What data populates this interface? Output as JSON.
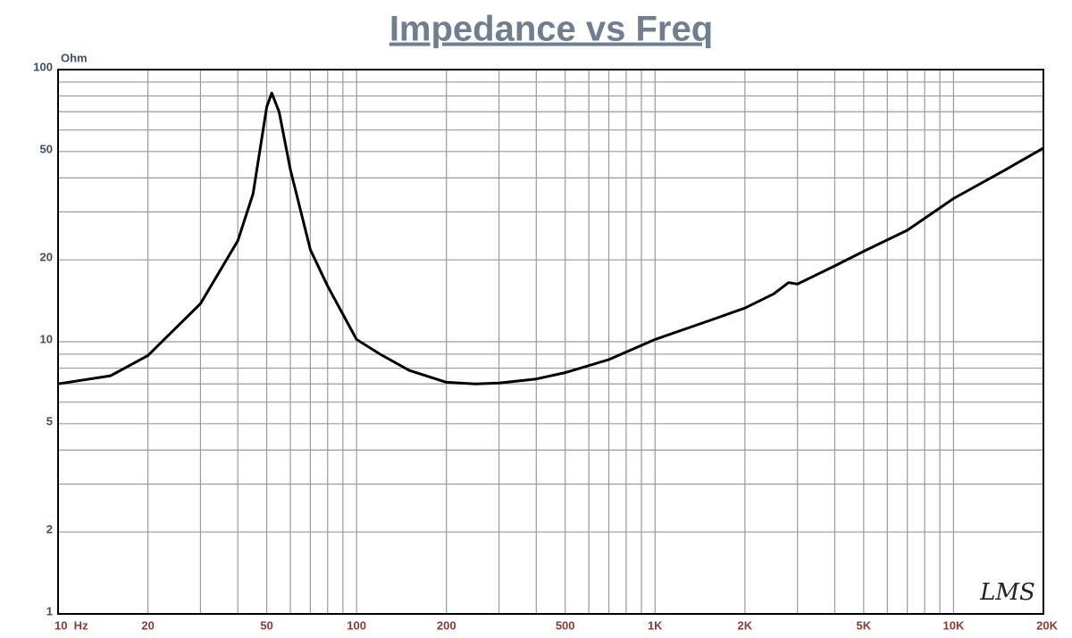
{
  "chart_data": {
    "type": "line",
    "title": "Impedance vs Freq",
    "y_label": "Ohm",
    "annotation": "LMS",
    "x_log": true,
    "y_log": true,
    "grid": true,
    "xlim": [
      10,
      20000
    ],
    "ylim": [
      1,
      100
    ],
    "xticks": [
      {
        "value": 10,
        "label": "10  Hz"
      },
      20,
      50,
      100,
      200,
      500,
      {
        "value": 1000,
        "label": "1K"
      },
      {
        "value": 2000,
        "label": "2K"
      },
      {
        "value": 5000,
        "label": "5K"
      },
      {
        "value": 10000,
        "label": "10K"
      },
      {
        "value": 20000,
        "label": "20K"
      }
    ],
    "x_minor_grid": [
      30,
      40,
      60,
      70,
      80,
      90,
      300,
      400,
      600,
      700,
      800,
      900,
      3000,
      4000,
      6000,
      7000,
      8000,
      9000
    ],
    "yticks": [
      1,
      2,
      5,
      10,
      20,
      50,
      100
    ],
    "y_minor_grid": [
      3,
      4,
      6,
      7,
      8,
      9,
      30,
      40,
      60,
      70,
      80,
      90
    ],
    "x": [
      10,
      15,
      20,
      30,
      40,
      45,
      50,
      52,
      55,
      60,
      70,
      80,
      100,
      120,
      150,
      200,
      250,
      300,
      400,
      500,
      700,
      1000,
      1500,
      2000,
      2500,
      2800,
      3000,
      4000,
      5000,
      7000,
      10000,
      15000,
      20000
    ],
    "series": [
      {
        "color": "#000000",
        "values": [
          7.0,
          7.5,
          8.9,
          13.8,
          23.5,
          35,
          73,
          82,
          70,
          43,
          21.8,
          16,
          10.2,
          9,
          7.85,
          7.1,
          7.0,
          7.05,
          7.3,
          7.7,
          8.6,
          10.2,
          11.9,
          13.3,
          15,
          16.5,
          16.3,
          19,
          21.5,
          25.7,
          33.6,
          43,
          51.5
        ]
      }
    ]
  }
}
